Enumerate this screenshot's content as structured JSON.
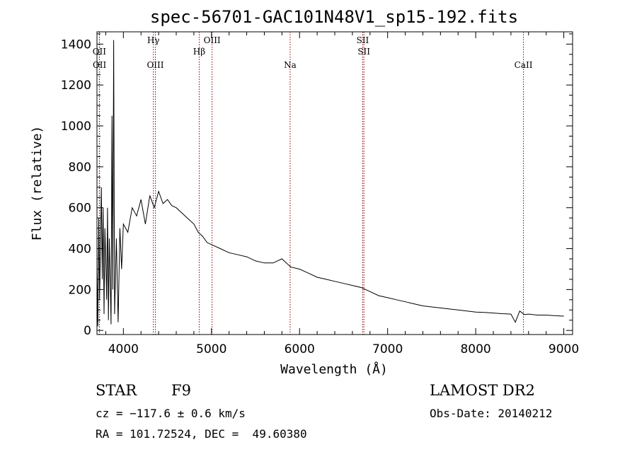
{
  "chart_data": {
    "type": "line",
    "title": "spec-56701-GAC101N48V1_sp15-192.fits",
    "xlabel": "Wavelength (Å)",
    "ylabel": "Flux (relative)",
    "xlim": [
      3700,
      9100
    ],
    "ylim": [
      -20,
      1460
    ],
    "xticks": [
      4000,
      5000,
      6000,
      7000,
      8000,
      9000
    ],
    "yticks": [
      0,
      200,
      400,
      600,
      800,
      1000,
      1200,
      1400
    ],
    "grid": false,
    "spectrum_color": "#000000",
    "line_marker_color": "#8b0000",
    "emission_lines": [
      {
        "name": "OII",
        "wavelength": 3727,
        "row": 0
      },
      {
        "name": "OII",
        "wavelength": 3729,
        "row": 1
      },
      {
        "name": "Hγ",
        "wavelength": 4340,
        "row": -1
      },
      {
        "name": "OIII",
        "wavelength": 4363,
        "row": 1
      },
      {
        "name": "Hβ",
        "wavelength": 4861,
        "row": 0
      },
      {
        "name": "OIII",
        "wavelength": 5007,
        "row": -1
      },
      {
        "name": "Na",
        "wavelength": 5893,
        "row": 1
      },
      {
        "name": "SII",
        "wavelength": 6717,
        "row": -1
      },
      {
        "name": "SII",
        "wavelength": 6731,
        "row": 0
      },
      {
        "name": "CaII",
        "wavelength": 8542,
        "row": 1
      }
    ],
    "series": [
      {
        "x": [
          3700,
          3710,
          3720,
          3730,
          3740,
          3750,
          3760,
          3770,
          3780,
          3790,
          3800,
          3810,
          3820,
          3830,
          3840,
          3850,
          3860,
          3870,
          3880,
          3890,
          3900,
          3920,
          3940,
          3960,
          3980,
          4000,
          4050,
          4100,
          4150,
          4200,
          4250,
          4300,
          4350,
          4400,
          4450,
          4500,
          4550,
          4600,
          4650,
          4700,
          4750,
          4800,
          4850,
          4900,
          4950,
          5000,
          5100,
          5200,
          5300,
          5400,
          5500,
          5600,
          5700,
          5800,
          5900,
          6000,
          6100,
          6200,
          6300,
          6400,
          6500,
          6600,
          6700,
          6800,
          6900,
          7000,
          7100,
          7200,
          7300,
          7400,
          7500,
          7600,
          7700,
          7800,
          7900,
          8000,
          8100,
          8200,
          8300,
          8400,
          8450,
          8500,
          8550,
          8600,
          8700,
          8800,
          8900,
          9000
        ],
        "y": [
          300,
          20,
          550,
          150,
          420,
          700,
          250,
          600,
          80,
          500,
          350,
          150,
          600,
          50,
          450,
          250,
          30,
          1050,
          200,
          1420,
          80,
          450,
          40,
          500,
          300,
          520,
          480,
          600,
          560,
          640,
          520,
          660,
          600,
          680,
          620,
          640,
          610,
          600,
          580,
          560,
          540,
          520,
          480,
          460,
          430,
          420,
          400,
          380,
          370,
          360,
          340,
          330,
          330,
          350,
          310,
          300,
          280,
          260,
          250,
          240,
          230,
          220,
          210,
          190,
          170,
          160,
          150,
          140,
          130,
          120,
          115,
          110,
          105,
          100,
          95,
          90,
          88,
          85,
          82,
          80,
          40,
          95,
          78,
          80,
          75,
          75,
          72,
          70
        ]
      }
    ]
  },
  "info": {
    "object_class": "STAR",
    "subclass": "F9",
    "survey": "LAMOST DR2",
    "redshift": "cz = −117.6 ± 0.6 km/s",
    "obs_date": "Obs-Date: 20140212",
    "coords": "RA = 101.72524, DEC =  49.60380"
  }
}
